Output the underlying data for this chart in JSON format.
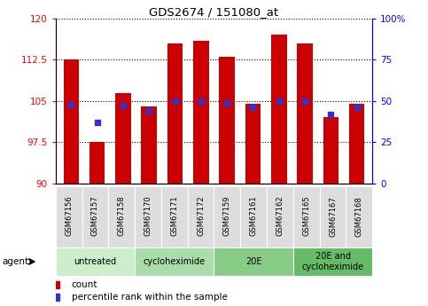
{
  "title": "GDS2674 / 151080_at",
  "samples": [
    "GSM67156",
    "GSM67157",
    "GSM67158",
    "GSM67170",
    "GSM67171",
    "GSM67172",
    "GSM67159",
    "GSM67161",
    "GSM67162",
    "GSM67165",
    "GSM67167",
    "GSM67168"
  ],
  "counts": [
    112.5,
    97.5,
    106.5,
    104.0,
    115.5,
    116.0,
    113.0,
    104.5,
    117.0,
    115.5,
    102.0,
    104.5
  ],
  "percentiles": [
    48,
    37,
    47,
    44,
    50,
    50,
    49,
    46,
    50,
    50,
    42,
    46
  ],
  "y_min": 90,
  "y_max": 120,
  "y_ticks": [
    90,
    97.5,
    105,
    112.5,
    120
  ],
  "y_tick_labels": [
    "90",
    "97.5",
    "105",
    "112.5",
    "120"
  ],
  "y2_ticks": [
    0,
    25,
    50,
    75,
    100
  ],
  "y2_tick_labels": [
    "0",
    "25",
    "50",
    "75",
    "100%"
  ],
  "bar_color": "#cc0000",
  "dot_color": "#3333cc",
  "groups": [
    {
      "label": "untreated",
      "start": 0,
      "end": 3,
      "color": "#cceecc"
    },
    {
      "label": "cycloheximide",
      "start": 3,
      "end": 6,
      "color": "#aaddaa"
    },
    {
      "label": "20E",
      "start": 6,
      "end": 9,
      "color": "#88cc88"
    },
    {
      "label": "20E and\ncycloheximide",
      "start": 9,
      "end": 12,
      "color": "#66bb66"
    }
  ],
  "legend_count_label": "count",
  "legend_pct_label": "percentile rank within the sample",
  "sample_box_color": "#dddddd",
  "spine_color": "#888888"
}
